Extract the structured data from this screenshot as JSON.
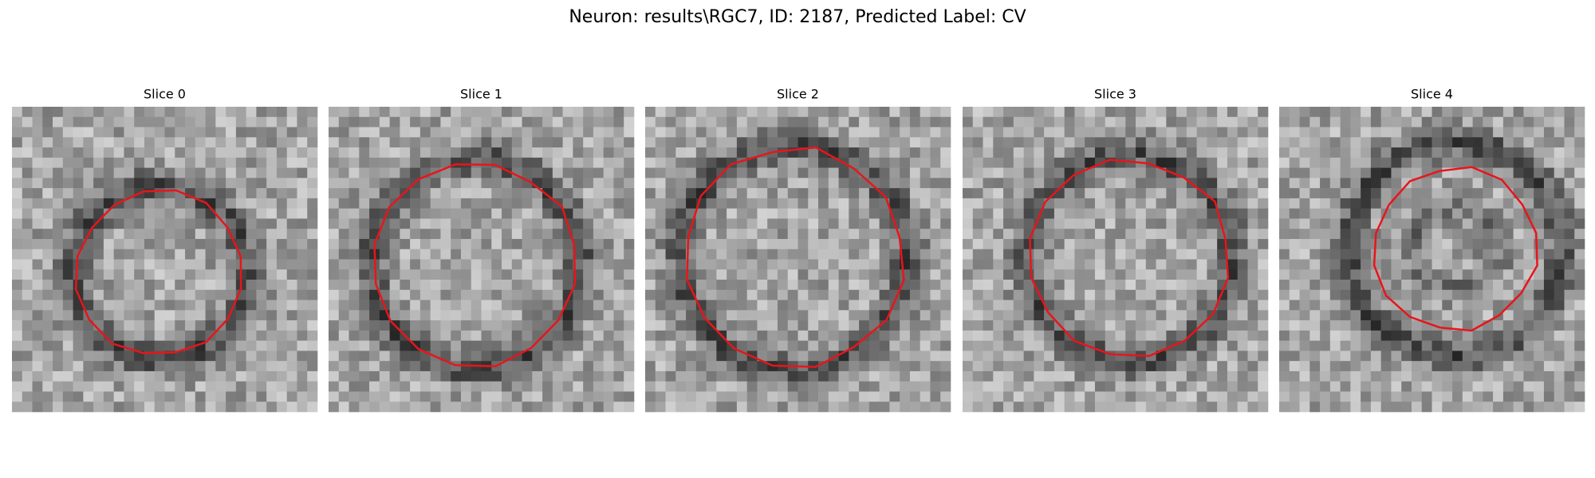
{
  "header": {
    "title": "Neuron: results\\RGC7, ID: 2187, Predicted Label: CV"
  },
  "panels": [
    {
      "title": "Slice 0"
    },
    {
      "title": "Slice 1"
    },
    {
      "title": "Slice 2"
    },
    {
      "title": "Slice 3"
    },
    {
      "title": "Slice 4"
    }
  ]
}
